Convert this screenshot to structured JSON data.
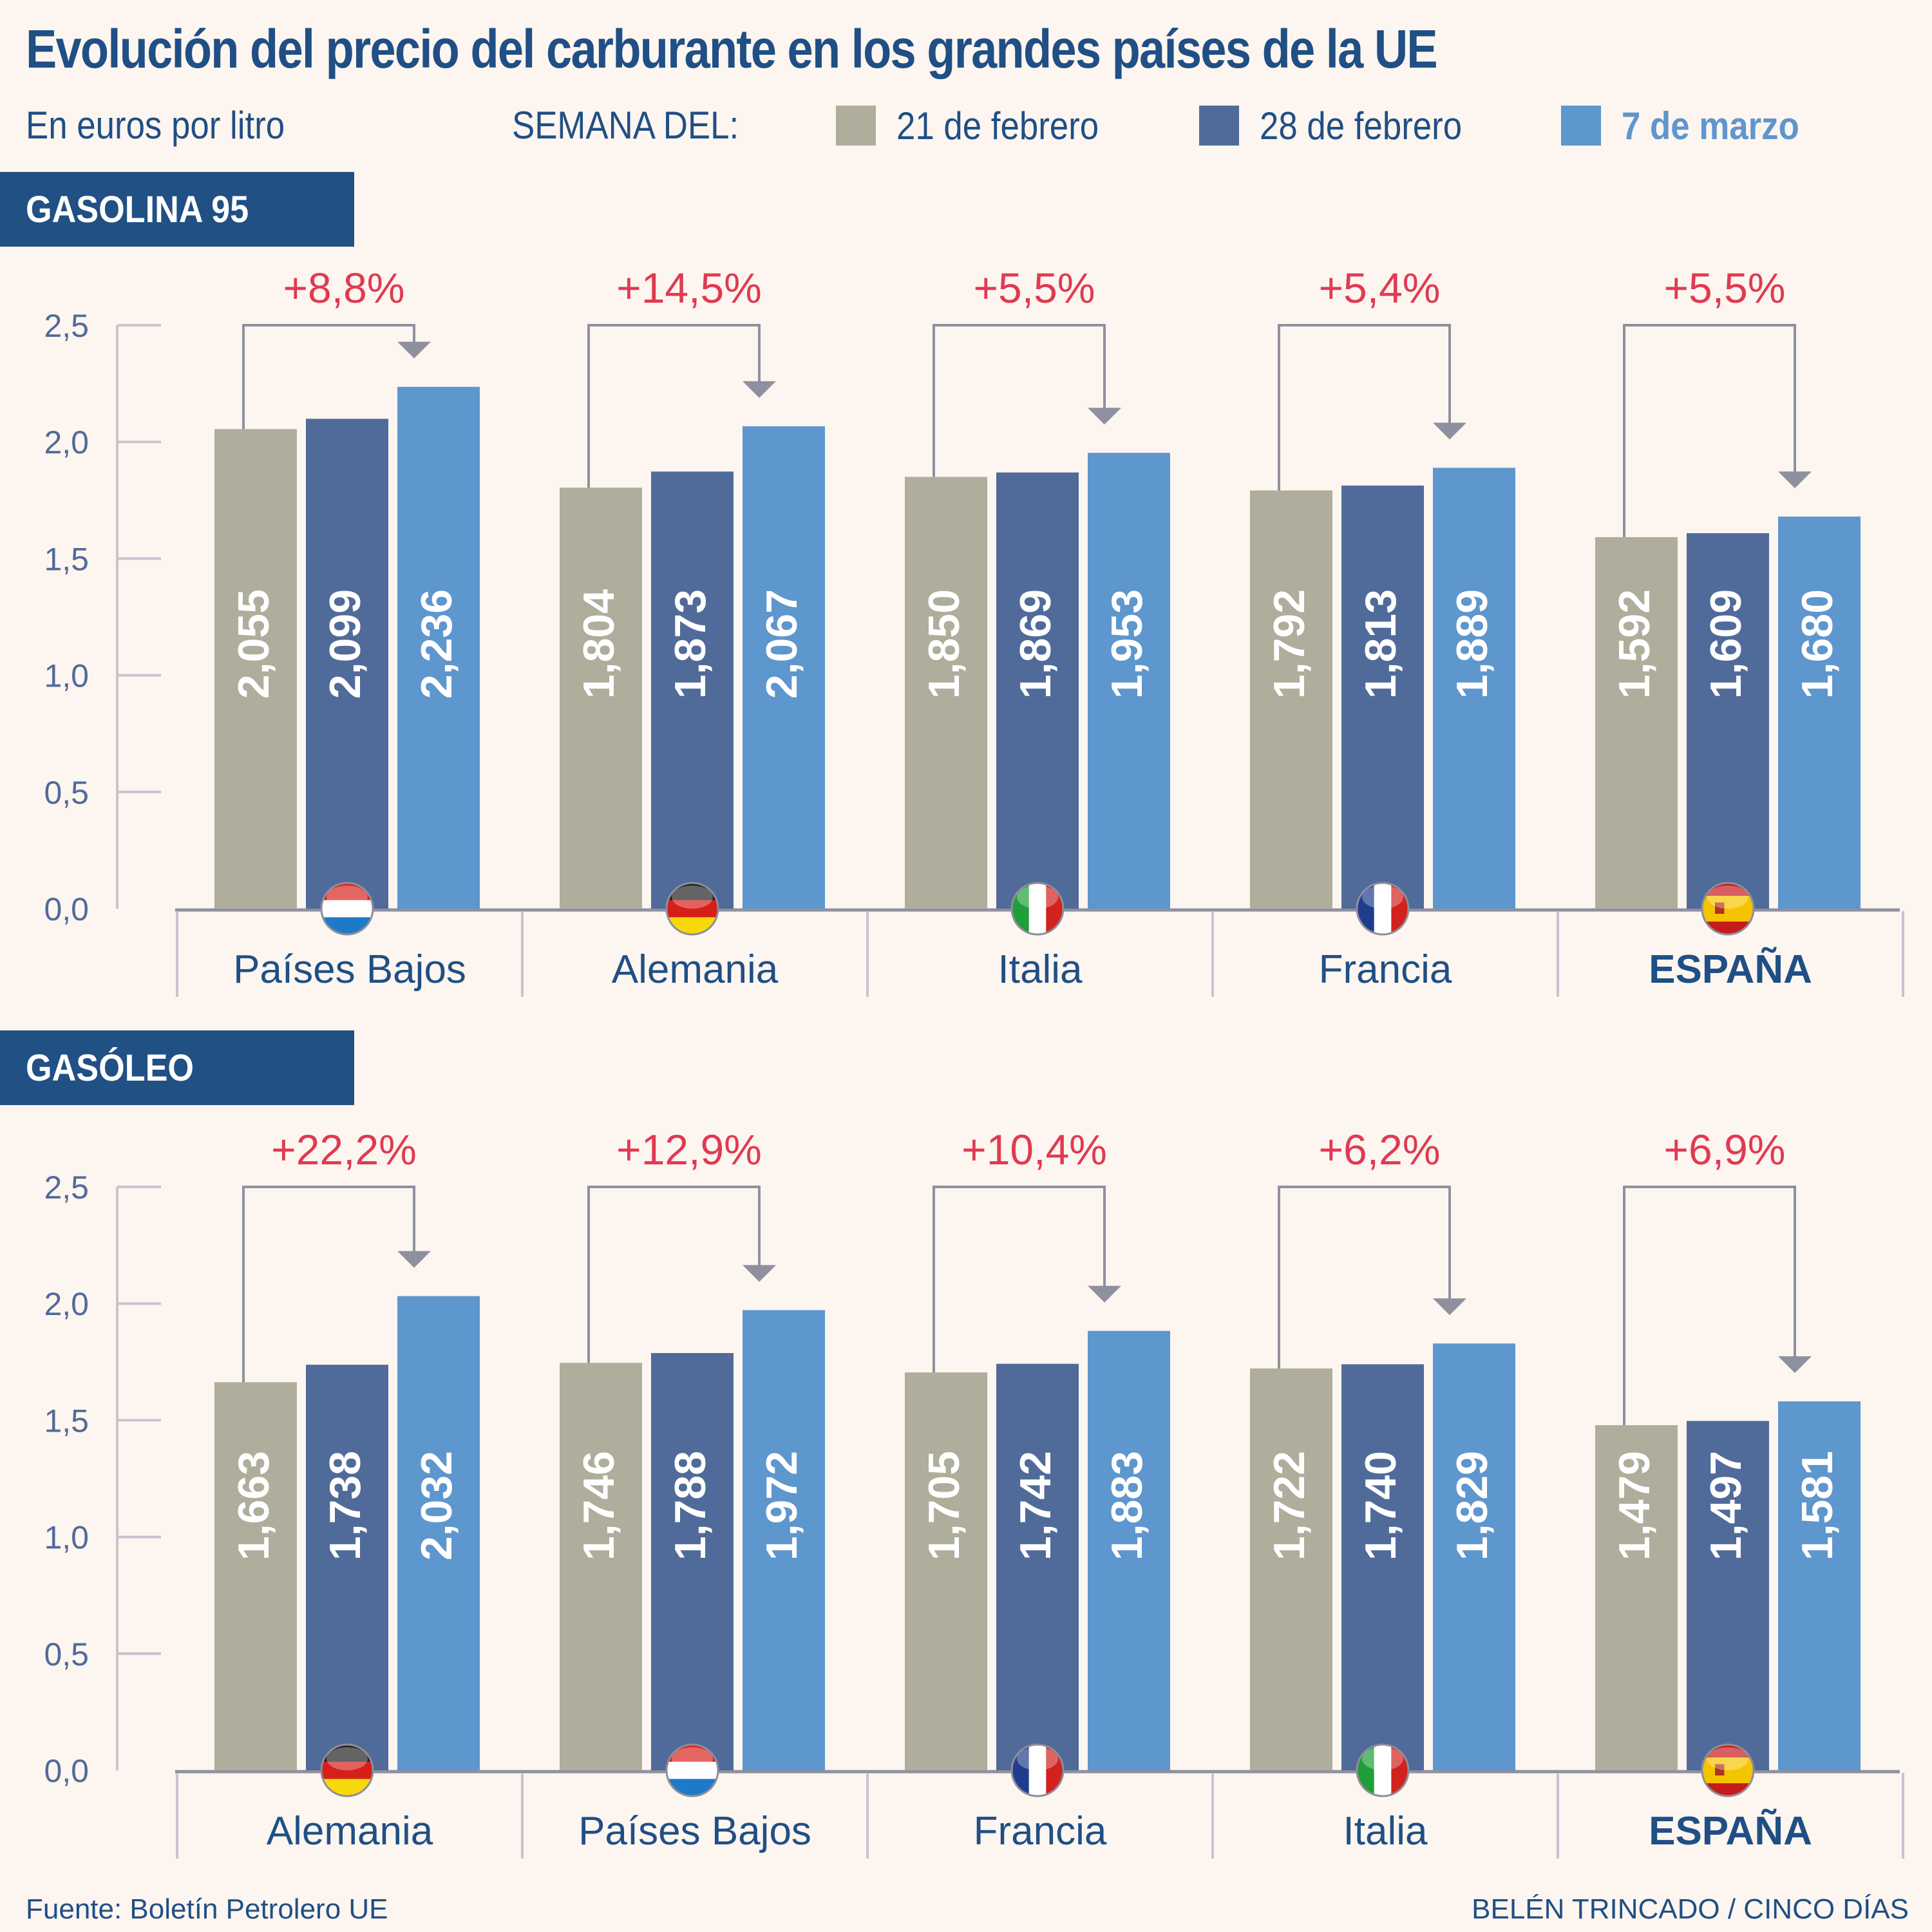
{
  "header": {
    "title": "Evolución del precio del carburante en los grandes países de la UE",
    "subtitle": "En euros por litro",
    "legend_label": "SEMANA DEL:"
  },
  "legend": [
    {
      "label": "21 de febrero",
      "color": "#afad9b"
    },
    {
      "label": "28 de febrero",
      "color": "#506b99"
    },
    {
      "label": "7 de marzo",
      "color": "#5e96ce"
    }
  ],
  "colors": {
    "title": "#1f4f85",
    "section_bg": "#215084",
    "change_label": "#e03a52",
    "axis": "#c7c3cf",
    "axis_text": "#506b99",
    "connector": "#8f909f",
    "background": "#fdf5ef"
  },
  "footer": {
    "source": "Fuente: Boletín Petrolero UE",
    "credit": "BELÉN TRINCADO / CINCO DÍAS"
  },
  "chart_data": [
    {
      "type": "bar",
      "title": "GASOLINA 95",
      "ylabel": "En euros por litro",
      "ylim": [
        0,
        2.5
      ],
      "yticks": [
        "0,0",
        "0,5",
        "1,0",
        "1,5",
        "2,0",
        "2,5"
      ],
      "ytick_values": [
        0,
        0.5,
        1.0,
        1.5,
        2.0,
        2.5
      ],
      "grid": false,
      "legend": "top",
      "categories": [
        "Países Bajos",
        "Alemania",
        "Italia",
        "Francia",
        "ESPAÑA"
      ],
      "flags": [
        "netherlands-flag",
        "germany-flag",
        "italy-flag",
        "france-flag",
        "spain-flag"
      ],
      "bold_categories": [
        "ESPAÑA"
      ],
      "series": [
        {
          "name": "21 de febrero",
          "values": [
            2.055,
            1.804,
            1.85,
            1.792,
            1.592
          ],
          "labels": [
            "2,055",
            "1,804",
            "1,850",
            "1,792",
            "1,592"
          ]
        },
        {
          "name": "28 de febrero",
          "values": [
            2.099,
            1.873,
            1.869,
            1.813,
            1.609
          ],
          "labels": [
            "2,099",
            "1,873",
            "1,869",
            "1,813",
            "1,609"
          ]
        },
        {
          "name": "7 de marzo",
          "values": [
            2.236,
            2.067,
            1.953,
            1.889,
            1.68
          ],
          "labels": [
            "2,236",
            "2,067",
            "1,953",
            "1,889",
            "1,680"
          ]
        }
      ],
      "changes": [
        "+8,8%",
        "+14,5%",
        "+5,5%",
        "+5,4%",
        "+5,5%"
      ]
    },
    {
      "type": "bar",
      "title": "GASÓLEO",
      "ylabel": "En euros por litro",
      "ylim": [
        0,
        2.5
      ],
      "yticks": [
        "0,0",
        "0,5",
        "1,0",
        "1,5",
        "2,0",
        "2,5"
      ],
      "ytick_values": [
        0,
        0.5,
        1.0,
        1.5,
        2.0,
        2.5
      ],
      "grid": false,
      "legend": "top",
      "categories": [
        "Alemania",
        "Países Bajos",
        "Francia",
        "Italia",
        "ESPAÑA"
      ],
      "flags": [
        "germany-flag",
        "netherlands-flag",
        "france-flag",
        "italy-flag",
        "spain-flag"
      ],
      "bold_categories": [
        "ESPAÑA"
      ],
      "series": [
        {
          "name": "21 de febrero",
          "values": [
            1.663,
            1.746,
            1.705,
            1.722,
            1.479
          ],
          "labels": [
            "1,663",
            "1,746",
            "1,705",
            "1,722",
            "1,479"
          ]
        },
        {
          "name": "28 de febrero",
          "values": [
            1.738,
            1.788,
            1.742,
            1.74,
            1.497
          ],
          "labels": [
            "1,738",
            "1,788",
            "1,742",
            "1,740",
            "1,497"
          ]
        },
        {
          "name": "7 de marzo",
          "values": [
            2.032,
            1.972,
            1.883,
            1.829,
            1.581
          ],
          "labels": [
            "2,032",
            "1,972",
            "1,883",
            "1,829",
            "1,581"
          ]
        }
      ],
      "changes": [
        "+22,2%",
        "+12,9%",
        "+10,4%",
        "+6,2%",
        "+6,9%"
      ]
    }
  ]
}
